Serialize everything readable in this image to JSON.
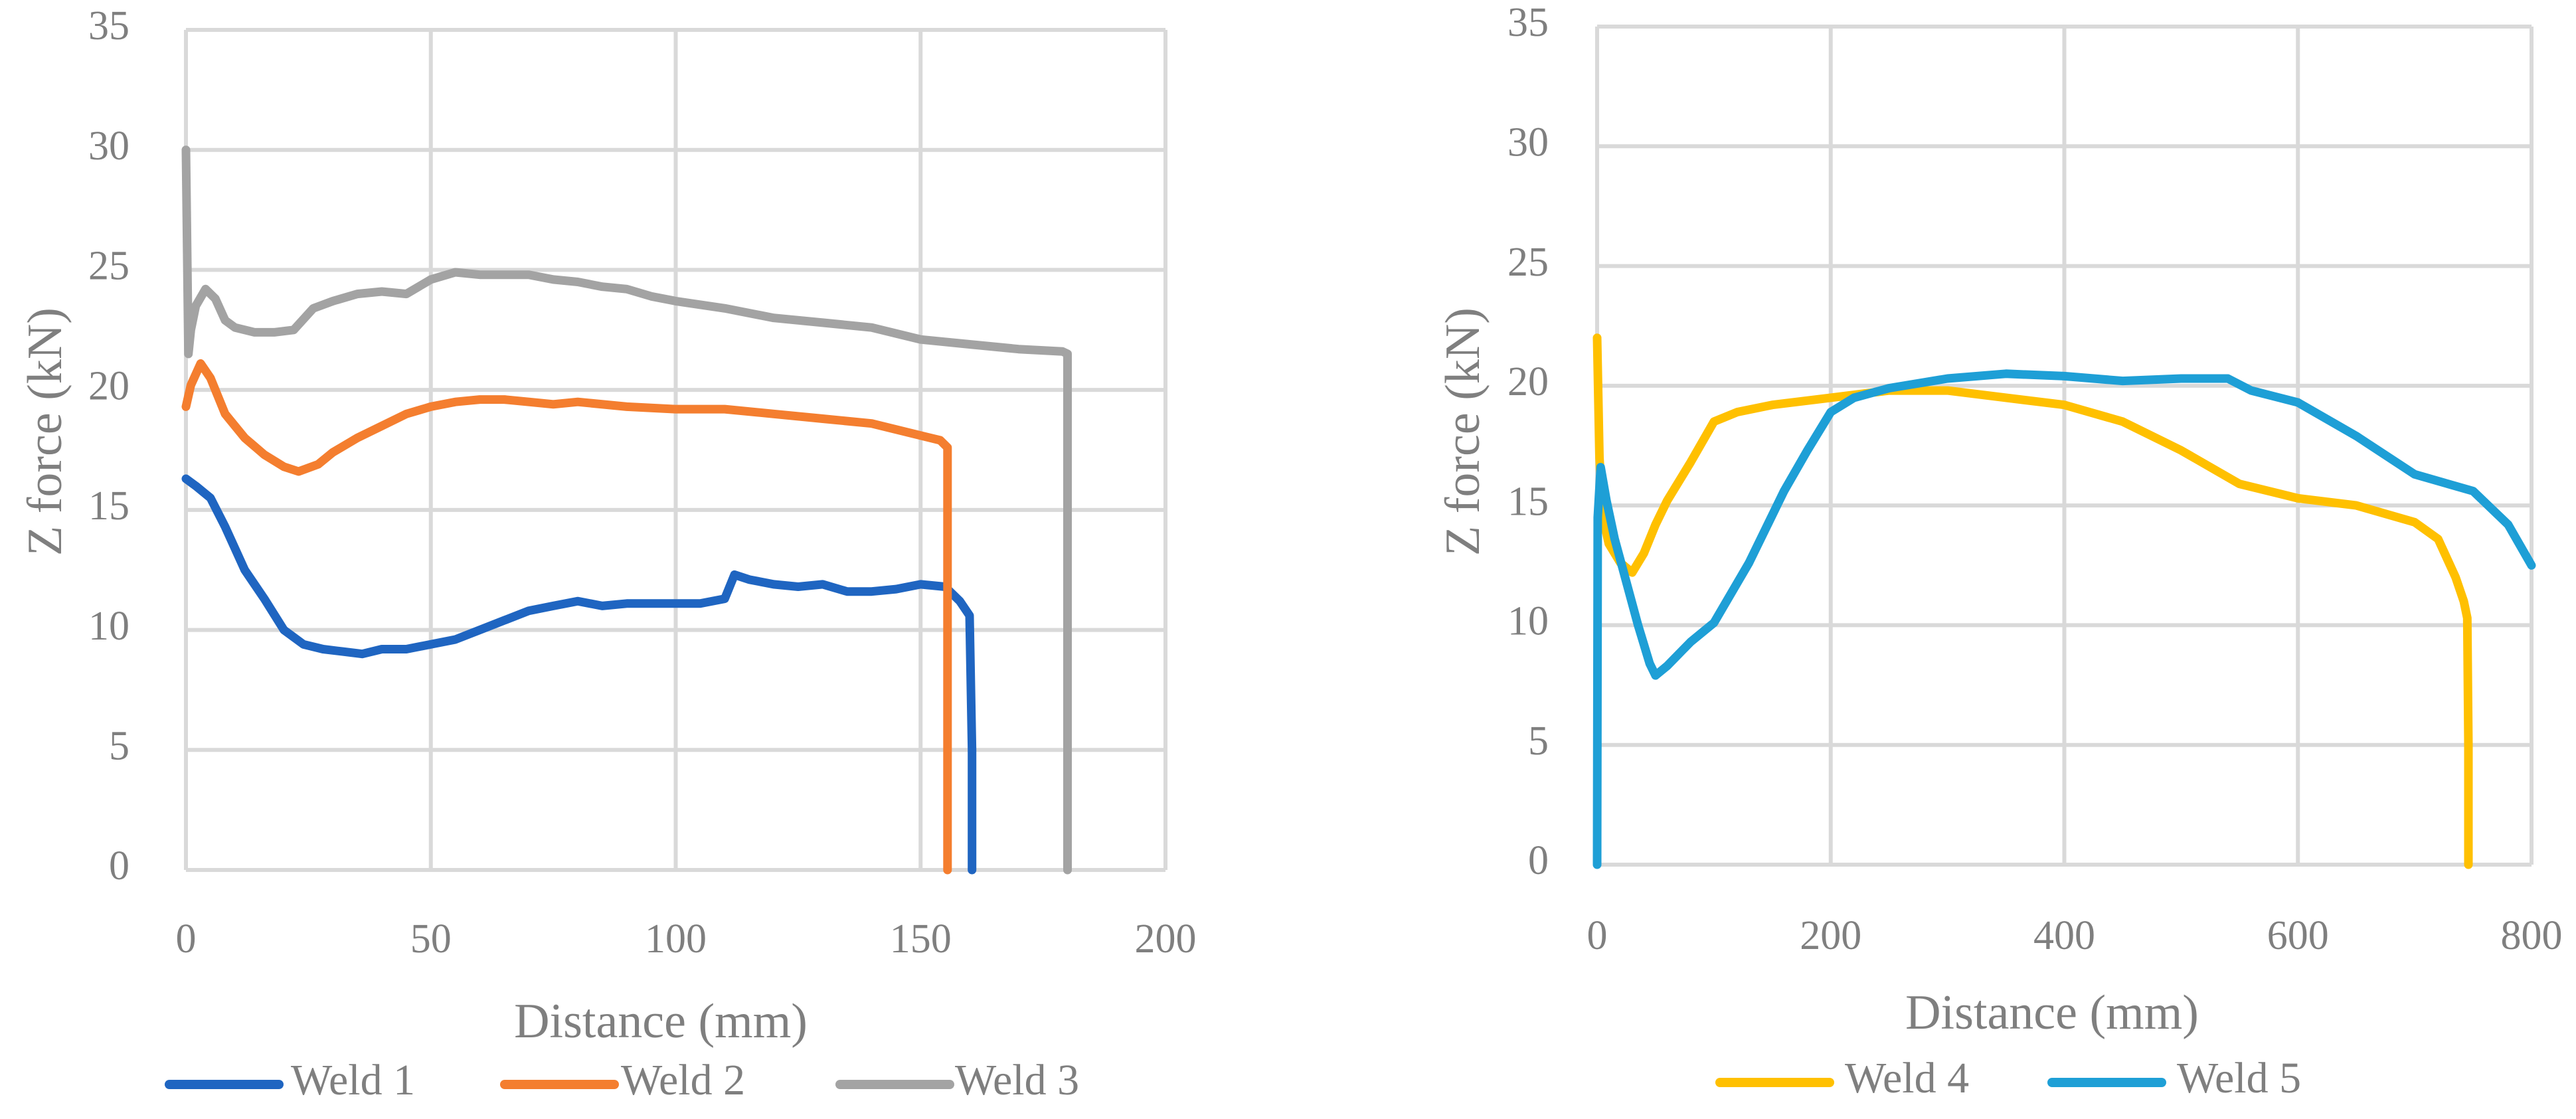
{
  "chart_data": [
    {
      "type": "line",
      "title": "",
      "xlabel": "Distance (mm)",
      "ylabel": "Z force (kN)",
      "xlim": [
        0,
        200
      ],
      "ylim": [
        0,
        35
      ],
      "xticks": [
        0,
        50,
        100,
        150,
        200
      ],
      "xtick_labels": [
        "0",
        "50",
        "100",
        "150",
        "200"
      ],
      "yticks": [
        0,
        5,
        10,
        15,
        20,
        25,
        30,
        35
      ],
      "ytick_labels": [
        "0",
        "5",
        "10",
        "15",
        "20",
        "25",
        "30",
        "35"
      ],
      "grid": true,
      "legend_position": "bottom",
      "series": [
        {
          "name": "Weld 1",
          "color": "#1f65c1",
          "x": [
            0,
            2,
            5,
            8,
            12,
            16,
            20,
            24,
            28,
            32,
            36,
            40,
            45,
            50,
            55,
            60,
            65,
            70,
            75,
            80,
            85,
            90,
            95,
            100,
            105,
            110,
            112,
            115,
            120,
            125,
            130,
            135,
            140,
            145,
            150,
            155,
            158,
            160,
            160.5,
            160.5
          ],
          "y": [
            16.3,
            16.0,
            15.5,
            14.3,
            12.5,
            11.3,
            10.0,
            9.4,
            9.2,
            9.1,
            9.0,
            9.2,
            9.2,
            9.4,
            9.6,
            10.0,
            10.4,
            10.8,
            11.0,
            11.2,
            11.0,
            11.1,
            11.1,
            11.1,
            11.1,
            11.3,
            12.3,
            12.1,
            11.9,
            11.8,
            11.9,
            11.6,
            11.6,
            11.7,
            11.9,
            11.8,
            11.2,
            10.6,
            5.0,
            0
          ]
        },
        {
          "name": "Weld 2",
          "color": "#f47e2f",
          "x": [
            0,
            1,
            3,
            5,
            8,
            12,
            16,
            20,
            23,
            27,
            30,
            35,
            40,
            45,
            50,
            55,
            60,
            65,
            70,
            75,
            80,
            90,
            100,
            110,
            120,
            130,
            140,
            150,
            154,
            155.5,
            155.5
          ],
          "y": [
            19.3,
            20.2,
            21.1,
            20.5,
            19.0,
            18.0,
            17.3,
            16.8,
            16.6,
            16.9,
            17.4,
            18.0,
            18.5,
            19.0,
            19.3,
            19.5,
            19.6,
            19.6,
            19.5,
            19.4,
            19.5,
            19.3,
            19.2,
            19.2,
            19.0,
            18.8,
            18.6,
            18.1,
            17.9,
            17.6,
            0
          ]
        },
        {
          "name": "Weld 3",
          "color": "#a3a3a3",
          "x": [
            0,
            0.5,
            1,
            2,
            4,
            6,
            8,
            10,
            14,
            18,
            22,
            26,
            30,
            35,
            40,
            45,
            50,
            55,
            60,
            65,
            70,
            75,
            80,
            85,
            90,
            95,
            100,
            110,
            120,
            130,
            140,
            150,
            160,
            170,
            179,
            180,
            180
          ],
          "y": [
            30.0,
            21.5,
            22.5,
            23.5,
            24.2,
            23.8,
            22.9,
            22.6,
            22.4,
            22.4,
            22.5,
            23.4,
            23.7,
            24.0,
            24.1,
            24.0,
            24.6,
            24.9,
            24.8,
            24.8,
            24.8,
            24.6,
            24.5,
            24.3,
            24.2,
            23.9,
            23.7,
            23.4,
            23.0,
            22.8,
            22.6,
            22.1,
            21.9,
            21.7,
            21.6,
            21.5,
            0
          ]
        }
      ]
    },
    {
      "type": "line",
      "title": "",
      "xlabel": "Distance (mm)",
      "ylabel": "Z force (kN)",
      "xlim": [
        0,
        800
      ],
      "ylim": [
        0,
        35
      ],
      "xticks": [
        0,
        200,
        400,
        600,
        800
      ],
      "xtick_labels": [
        "0",
        "200",
        "400",
        "600",
        "800"
      ],
      "yticks": [
        0,
        5,
        10,
        15,
        20,
        25,
        30,
        35
      ],
      "ytick_labels": [
        "0",
        "5",
        "10",
        "15",
        "20",
        "25",
        "30",
        "35"
      ],
      "grid": true,
      "legend_position": "bottom",
      "series": [
        {
          "name": "Weld 4",
          "color": "#ffc000",
          "x": [
            0,
            2,
            5,
            10,
            20,
            30,
            40,
            50,
            60,
            80,
            100,
            120,
            150,
            200,
            250,
            300,
            350,
            400,
            450,
            500,
            550,
            600,
            650,
            700,
            720,
            735,
            742,
            745,
            746,
            746
          ],
          "y": [
            22.0,
            17.0,
            14.5,
            13.4,
            12.6,
            12.2,
            13.0,
            14.2,
            15.2,
            16.8,
            18.5,
            18.9,
            19.2,
            19.5,
            19.8,
            19.8,
            19.5,
            19.2,
            18.5,
            17.3,
            15.9,
            15.3,
            15.0,
            14.3,
            13.6,
            12.0,
            11.0,
            10.3,
            5.0,
            0
          ]
        },
        {
          "name": "Weld 5",
          "color": "#1e9fd6",
          "x": [
            0,
            0.5,
            3,
            8,
            15,
            25,
            35,
            45,
            50,
            60,
            70,
            80,
            100,
            130,
            160,
            180,
            200,
            220,
            250,
            300,
            350,
            400,
            450,
            500,
            540,
            560,
            600,
            650,
            700,
            750,
            780,
            800
          ],
          "y": [
            0,
            14.5,
            16.6,
            15.2,
            13.6,
            11.8,
            10.0,
            8.4,
            7.9,
            8.3,
            8.8,
            9.3,
            10.1,
            12.6,
            15.6,
            17.3,
            18.9,
            19.5,
            19.9,
            20.3,
            20.5,
            20.4,
            20.2,
            20.3,
            20.3,
            19.8,
            19.3,
            17.9,
            16.3,
            15.6,
            14.2,
            12.5
          ]
        }
      ]
    }
  ]
}
